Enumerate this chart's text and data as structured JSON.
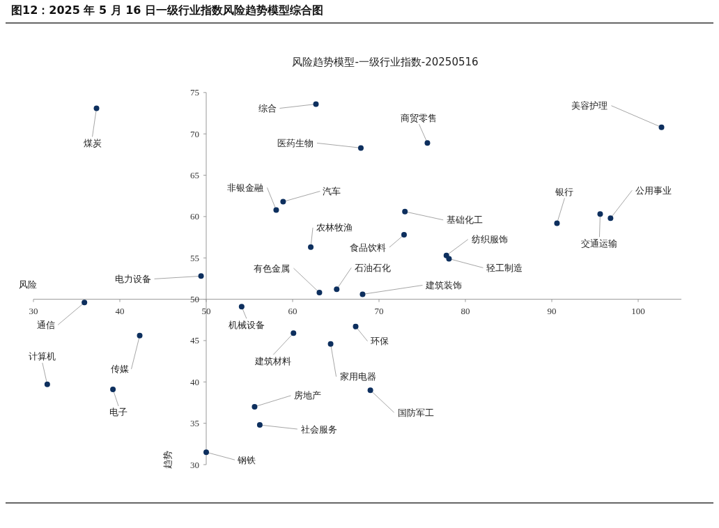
{
  "chart_data": {
    "type": "scatter",
    "title": "图12：2025 年 5 月 16 日一级行业指数风险趋势模型综合图",
    "subtitle": "风险趋势模型-一级行业指数-20250516",
    "xlabel": "风险",
    "ylabel": "趋势",
    "x": [
      37.3,
      62.7,
      75.6,
      67.9,
      102.7,
      58.9,
      58.1,
      73.0,
      90.6,
      95.6,
      96.8,
      62.1,
      72.9,
      77.8,
      78.1,
      49.4,
      63.1,
      65.1,
      68.1,
      35.9,
      54.1,
      67.3,
      60.1,
      42.3,
      64.4,
      31.6,
      39.2,
      69.0,
      55.6,
      56.2,
      50.0
    ],
    "values": [
      73.1,
      73.6,
      68.9,
      68.3,
      70.8,
      61.8,
      60.8,
      60.6,
      59.2,
      60.3,
      59.8,
      56.3,
      57.8,
      55.3,
      54.9,
      52.8,
      50.8,
      51.2,
      50.6,
      49.6,
      49.1,
      46.7,
      45.9,
      45.6,
      44.6,
      39.7,
      39.1,
      39.0,
      37.0,
      34.8,
      31.5
    ],
    "color": "#0d2f5e",
    "marker": "circle",
    "grid": false,
    "xlim": [
      30,
      105
    ],
    "xticks": [
      30,
      40,
      50,
      60,
      70,
      80,
      90,
      100
    ],
    "ylim": [
      30,
      75
    ],
    "yticks": [
      30,
      35,
      40,
      45,
      50,
      55,
      60,
      65,
      70,
      75
    ],
    "annotations": [
      {
        "text": "煤炭",
        "x": 37.3,
        "y": 73.1
      },
      {
        "text": "综合",
        "x": 62.7,
        "y": 73.6
      },
      {
        "text": "商贸零售",
        "x": 75.6,
        "y": 68.9
      },
      {
        "text": "医药生物",
        "x": 67.9,
        "y": 68.3
      },
      {
        "text": "美容护理",
        "x": 102.7,
        "y": 70.8
      },
      {
        "text": "汽车",
        "x": 58.9,
        "y": 61.8
      },
      {
        "text": "非银金融",
        "x": 58.1,
        "y": 60.8
      },
      {
        "text": "基础化工",
        "x": 73.0,
        "y": 60.6
      },
      {
        "text": "银行",
        "x": 90.6,
        "y": 59.2
      },
      {
        "text": "交通运输",
        "x": 95.6,
        "y": 60.3
      },
      {
        "text": "公用事业",
        "x": 96.8,
        "y": 59.8
      },
      {
        "text": "农林牧渔",
        "x": 62.1,
        "y": 56.3
      },
      {
        "text": "食品饮料",
        "x": 72.9,
        "y": 57.8
      },
      {
        "text": "纺织服饰",
        "x": 77.8,
        "y": 55.3
      },
      {
        "text": "轻工制造",
        "x": 78.1,
        "y": 54.9
      },
      {
        "text": "电力设备",
        "x": 49.4,
        "y": 52.8
      },
      {
        "text": "有色金属",
        "x": 63.1,
        "y": 50.8
      },
      {
        "text": "石油石化",
        "x": 65.1,
        "y": 51.2
      },
      {
        "text": "建筑装饰",
        "x": 68.1,
        "y": 50.6
      },
      {
        "text": "通信",
        "x": 35.9,
        "y": 49.6
      },
      {
        "text": "机械设备",
        "x": 54.1,
        "y": 49.1
      },
      {
        "text": "环保",
        "x": 67.3,
        "y": 46.7
      },
      {
        "text": "建筑材料",
        "x": 60.1,
        "y": 45.9
      },
      {
        "text": "传媒",
        "x": 42.3,
        "y": 45.6
      },
      {
        "text": "家用电器",
        "x": 64.4,
        "y": 44.6
      },
      {
        "text": "计算机",
        "x": 31.6,
        "y": 39.7
      },
      {
        "text": "电子",
        "x": 39.2,
        "y": 39.1
      },
      {
        "text": "国防军工",
        "x": 69.0,
        "y": 39.0
      },
      {
        "text": "房地产",
        "x": 55.6,
        "y": 37.0
      },
      {
        "text": "社会服务",
        "x": 56.2,
        "y": 34.8
      },
      {
        "text": "钢铁",
        "x": 50.0,
        "y": 31.5
      }
    ]
  }
}
